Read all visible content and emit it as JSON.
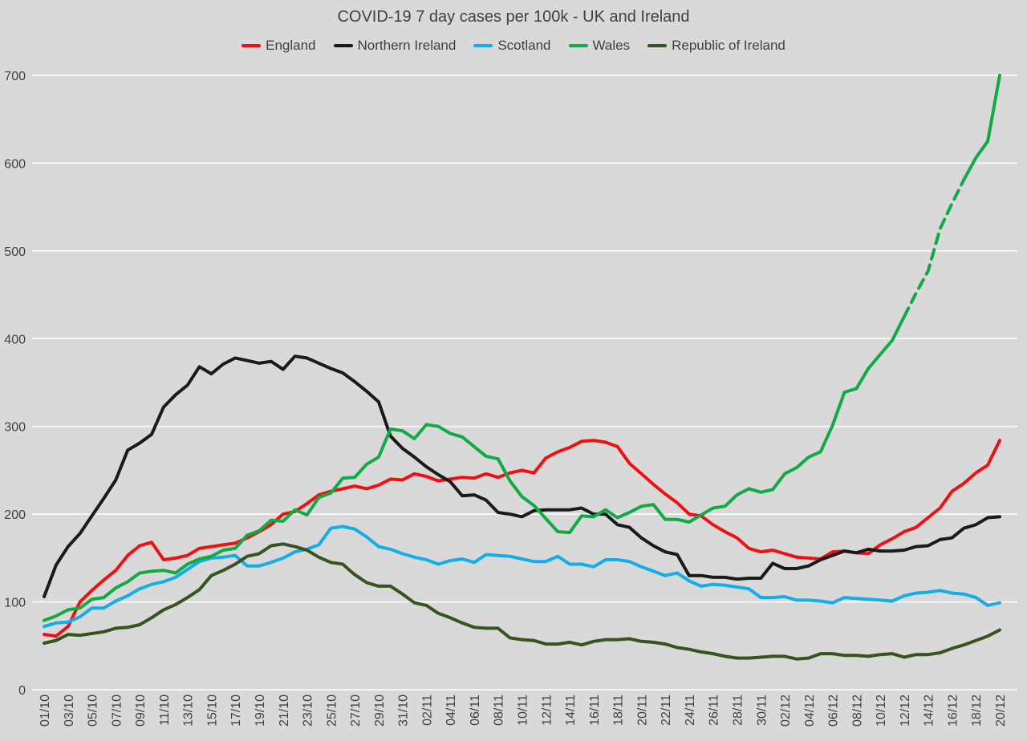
{
  "chart_data": {
    "type": "line",
    "title": "COVID-19 7 day cases per 100k - UK and Ireland",
    "xlabel": "",
    "ylabel": "",
    "ylim": [
      0,
      700
    ],
    "yticks": [
      0,
      100,
      200,
      300,
      400,
      500,
      600,
      700
    ],
    "grid": "horizontal",
    "legend_position": "top-center",
    "x": [
      "01/10",
      "02/10",
      "03/10",
      "04/10",
      "05/10",
      "06/10",
      "07/10",
      "08/10",
      "09/10",
      "10/10",
      "11/10",
      "12/10",
      "13/10",
      "14/10",
      "15/10",
      "16/10",
      "17/10",
      "18/10",
      "19/10",
      "20/10",
      "21/10",
      "22/10",
      "23/10",
      "24/10",
      "25/10",
      "26/10",
      "27/10",
      "28/10",
      "29/10",
      "30/10",
      "31/10",
      "01/11",
      "02/11",
      "03/11",
      "04/11",
      "05/11",
      "06/11",
      "07/11",
      "08/11",
      "09/11",
      "10/11",
      "11/11",
      "12/11",
      "13/11",
      "14/11",
      "15/11",
      "16/11",
      "17/11",
      "18/11",
      "19/11",
      "20/11",
      "21/11",
      "22/11",
      "23/11",
      "24/11",
      "25/11",
      "26/11",
      "27/11",
      "28/11",
      "29/11",
      "30/11",
      "01/12",
      "02/12",
      "03/12",
      "04/12",
      "05/12",
      "06/12",
      "07/12",
      "08/12",
      "09/12",
      "10/12",
      "11/12",
      "12/12",
      "13/12",
      "14/12",
      "15/12",
      "16/12",
      "17/12",
      "18/12",
      "19/12",
      "20/12"
    ],
    "x_tick_labels": [
      "01/10",
      "03/10",
      "05/10",
      "07/10",
      "09/10",
      "11/10",
      "13/10",
      "15/10",
      "17/10",
      "19/10",
      "21/10",
      "23/10",
      "25/10",
      "27/10",
      "29/10",
      "31/10",
      "02/11",
      "04/11",
      "06/11",
      "08/11",
      "10/11",
      "12/11",
      "14/11",
      "16/11",
      "18/11",
      "20/11",
      "22/11",
      "24/11",
      "26/11",
      "28/11",
      "30/11",
      "02/12",
      "04/12",
      "06/12",
      "08/12",
      "10/12",
      "12/12",
      "14/12",
      "16/12",
      "18/12",
      "20/12"
    ],
    "series": [
      {
        "name": "England",
        "color": "#ee1111",
        "values": [
          63,
          61,
          72,
          100,
          113,
          125,
          136,
          153,
          164,
          168,
          148,
          150,
          153,
          161,
          163,
          165,
          167,
          173,
          180,
          188,
          200,
          203,
          212,
          222,
          226,
          229,
          232,
          229,
          233,
          240,
          239,
          246,
          243,
          238,
          240,
          242,
          241,
          246,
          242,
          247,
          250,
          247,
          264,
          271,
          276,
          283,
          284,
          282,
          277,
          258,
          246,
          234,
          223,
          213,
          200,
          198,
          188,
          180,
          173,
          161,
          157,
          159,
          155,
          151,
          150,
          149,
          157,
          158,
          156,
          155,
          165,
          172,
          180,
          185,
          196,
          207,
          226,
          235,
          247,
          256,
          284
        ]
      },
      {
        "name": "Northern Ireland",
        "color": "#1a1a1a",
        "values": [
          106,
          142,
          163,
          178,
          198,
          218,
          239,
          273,
          281,
          291,
          322,
          336,
          347,
          368,
          360,
          371,
          378,
          375,
          372,
          374,
          365,
          380,
          378,
          372,
          366,
          361,
          351,
          340,
          328,
          289,
          275,
          265,
          254,
          245,
          237,
          221,
          222,
          216,
          202,
          200,
          197,
          204,
          205,
          205,
          205,
          207,
          200,
          200,
          188,
          185,
          173,
          164,
          157,
          154,
          130,
          130,
          128,
          128,
          126,
          127,
          127,
          144,
          138,
          138,
          141,
          148,
          153,
          158,
          156,
          160,
          158,
          158,
          159,
          163,
          164,
          171,
          173,
          184,
          188,
          196,
          197
        ]
      },
      {
        "name": "Scotland",
        "color": "#13aee8",
        "values": [
          72,
          76,
          77,
          83,
          93,
          93,
          101,
          107,
          115,
          120,
          123,
          128,
          137,
          146,
          150,
          151,
          153,
          141,
          141,
          145,
          150,
          157,
          160,
          165,
          184,
          186,
          183,
          174,
          163,
          160,
          155,
          151,
          148,
          143,
          147,
          149,
          145,
          154,
          153,
          152,
          149,
          146,
          146,
          152,
          143,
          143,
          140,
          148,
          148,
          146,
          140,
          135,
          130,
          133,
          124,
          118,
          120,
          119,
          117,
          115,
          105,
          105,
          106,
          102,
          102,
          101,
          99,
          105,
          104,
          103,
          102,
          101,
          107,
          110,
          111,
          113,
          110,
          109,
          105,
          96,
          99
        ]
      },
      {
        "name": "Wales",
        "color": "#11aa44",
        "values": [
          79,
          84,
          91,
          93,
          103,
          105,
          116,
          123,
          133,
          135,
          136,
          133,
          143,
          149,
          152,
          159,
          161,
          176,
          181,
          193,
          192,
          205,
          199,
          219,
          224,
          241,
          242,
          257,
          265,
          297,
          295,
          286,
          302,
          300,
          292,
          288,
          277,
          266,
          263,
          238,
          220,
          210,
          195,
          180,
          179,
          198,
          197,
          205,
          196,
          202,
          209,
          211,
          194,
          194,
          191,
          199,
          207,
          209,
          222,
          229,
          225,
          228,
          246,
          253,
          265,
          271,
          301,
          339,
          343,
          366,
          382,
          398,
          425,
          452,
          477,
          525,
          554,
          581,
          606,
          625,
          700
        ],
        "dashed_from_index": 72,
        "dashed_to_index": 77
      },
      {
        "name": "Republic of Ireland",
        "color": "#37531e",
        "values": [
          53,
          56,
          63,
          62,
          64,
          66,
          70,
          71,
          74,
          82,
          91,
          97,
          105,
          114,
          130,
          136,
          143,
          152,
          155,
          164,
          166,
          163,
          159,
          151,
          145,
          143,
          131,
          122,
          118,
          118,
          109,
          99,
          96,
          87,
          82,
          76,
          71,
          70,
          70,
          59,
          57,
          56,
          52,
          52,
          54,
          51,
          55,
          57,
          57,
          58,
          55,
          54,
          52,
          48,
          46,
          43,
          41,
          38,
          36,
          36,
          37,
          38,
          38,
          35,
          36,
          41,
          41,
          39,
          39,
          38,
          40,
          41,
          37,
          40,
          40,
          42,
          47,
          51,
          56,
          61,
          68
        ]
      }
    ]
  }
}
